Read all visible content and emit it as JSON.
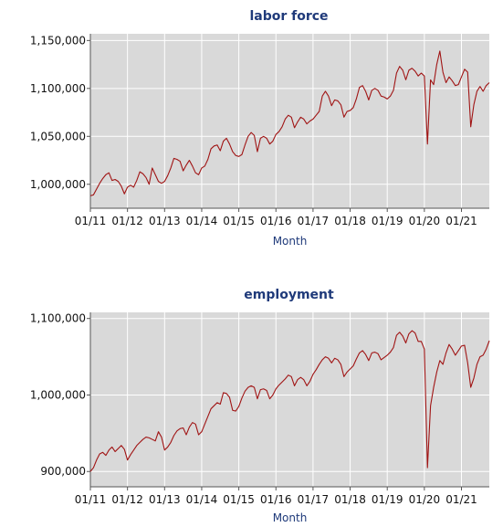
{
  "colors": {
    "plot_bg": "#d9d9d9",
    "grid": "#ffffff",
    "line": "#a01414",
    "title": "#1f3a7a",
    "axis": "#555555"
  },
  "chart_data": [
    {
      "type": "line",
      "title": "labor force",
      "xlabel": "Month",
      "ylabel": "",
      "ylim": [
        975000,
        1157000
      ],
      "yticks": [
        1000000,
        1050000,
        1100000,
        1150000
      ],
      "ytick_labels": [
        "1,000,000",
        "1,050,000",
        "1,100,000",
        "1,150,000"
      ],
      "xticks": [
        0,
        12,
        24,
        36,
        48,
        60,
        72,
        84,
        96,
        108,
        120
      ],
      "xtick_labels": [
        "01/11",
        "01/12",
        "01/13",
        "01/14",
        "01/15",
        "01/16",
        "01/17",
        "01/18",
        "01/19",
        "01/20",
        "01/21"
      ],
      "grid": true,
      "series": [
        {
          "values": [
            988000,
            989000,
            995000,
            1001000,
            1006000,
            1010000,
            1012000,
            1004000,
            1005000,
            1003000,
            998000,
            990000,
            997000,
            999000,
            997000,
            1004000,
            1013000,
            1011000,
            1007000,
            1000000,
            1017000,
            1010000,
            1003000,
            1001000,
            1003000,
            1009000,
            1017000,
            1027000,
            1026000,
            1024000,
            1014000,
            1020000,
            1025000,
            1019000,
            1012000,
            1010000,
            1017000,
            1019000,
            1026000,
            1037000,
            1040000,
            1041000,
            1035000,
            1045000,
            1048000,
            1042000,
            1034000,
            1030000,
            1029000,
            1031000,
            1041000,
            1050000,
            1054000,
            1051000,
            1034000,
            1048000,
            1050000,
            1048000,
            1042000,
            1045000,
            1052000,
            1055000,
            1060000,
            1068000,
            1072000,
            1070000,
            1059000,
            1065000,
            1070000,
            1068000,
            1063000,
            1066000,
            1068000,
            1072000,
            1076000,
            1092000,
            1097000,
            1092000,
            1082000,
            1088000,
            1087000,
            1083000,
            1070000,
            1076000,
            1077000,
            1080000,
            1089000,
            1101000,
            1103000,
            1097000,
            1088000,
            1098000,
            1100000,
            1098000,
            1092000,
            1091000,
            1089000,
            1092000,
            1098000,
            1116000,
            1123000,
            1119000,
            1109000,
            1119000,
            1121000,
            1118000,
            1113000,
            1116000,
            1113000,
            1042000,
            1109000,
            1104000,
            1125000,
            1139000,
            1117000,
            1106000,
            1112000,
            1108000,
            1103000,
            1104000,
            1112000,
            1120000,
            1117000,
            1060000,
            1083000,
            1097000,
            1102000,
            1097000,
            1103000,
            1106000
          ]
        }
      ]
    },
    {
      "type": "line",
      "title": "employment",
      "xlabel": "Month",
      "ylabel": "",
      "ylim": [
        880000,
        1108000
      ],
      "yticks": [
        900000,
        1000000,
        1100000
      ],
      "ytick_labels": [
        "900,000",
        "1,000,000",
        "1,100,000"
      ],
      "xticks": [
        0,
        12,
        24,
        36,
        48,
        60,
        72,
        84,
        96,
        108,
        120
      ],
      "xtick_labels": [
        "01/11",
        "01/12",
        "01/13",
        "01/14",
        "01/15",
        "01/16",
        "01/17",
        "01/18",
        "01/19",
        "01/20",
        "01/21"
      ],
      "grid": true,
      "series": [
        {
          "values": [
            900000,
            905000,
            915000,
            923000,
            925000,
            921000,
            928000,
            932000,
            926000,
            930000,
            934000,
            929000,
            915000,
            922000,
            928000,
            934000,
            938000,
            942000,
            945000,
            944000,
            942000,
            940000,
            952000,
            945000,
            928000,
            932000,
            938000,
            947000,
            953000,
            956000,
            957000,
            948000,
            958000,
            964000,
            962000,
            948000,
            952000,
            962000,
            972000,
            982000,
            986000,
            990000,
            988000,
            1003000,
            1002000,
            997000,
            980000,
            979000,
            985000,
            996000,
            1005000,
            1010000,
            1012000,
            1010000,
            995000,
            1007000,
            1008000,
            1006000,
            995000,
            1000000,
            1008000,
            1013000,
            1017000,
            1021000,
            1026000,
            1024000,
            1012000,
            1020000,
            1023000,
            1020000,
            1012000,
            1018000,
            1027000,
            1033000,
            1040000,
            1046000,
            1050000,
            1048000,
            1042000,
            1048000,
            1046000,
            1040000,
            1024000,
            1030000,
            1034000,
            1038000,
            1047000,
            1055000,
            1058000,
            1053000,
            1045000,
            1055000,
            1056000,
            1054000,
            1046000,
            1049000,
            1052000,
            1056000,
            1062000,
            1078000,
            1082000,
            1077000,
            1068000,
            1080000,
            1084000,
            1081000,
            1070000,
            1070000,
            1060000,
            905000,
            986000,
            1010000,
            1030000,
            1045000,
            1040000,
            1055000,
            1066000,
            1060000,
            1052000,
            1058000,
            1064000,
            1065000,
            1042000,
            1010000,
            1022000,
            1040000,
            1050000,
            1052000,
            1060000,
            1071000
          ]
        }
      ]
    }
  ]
}
